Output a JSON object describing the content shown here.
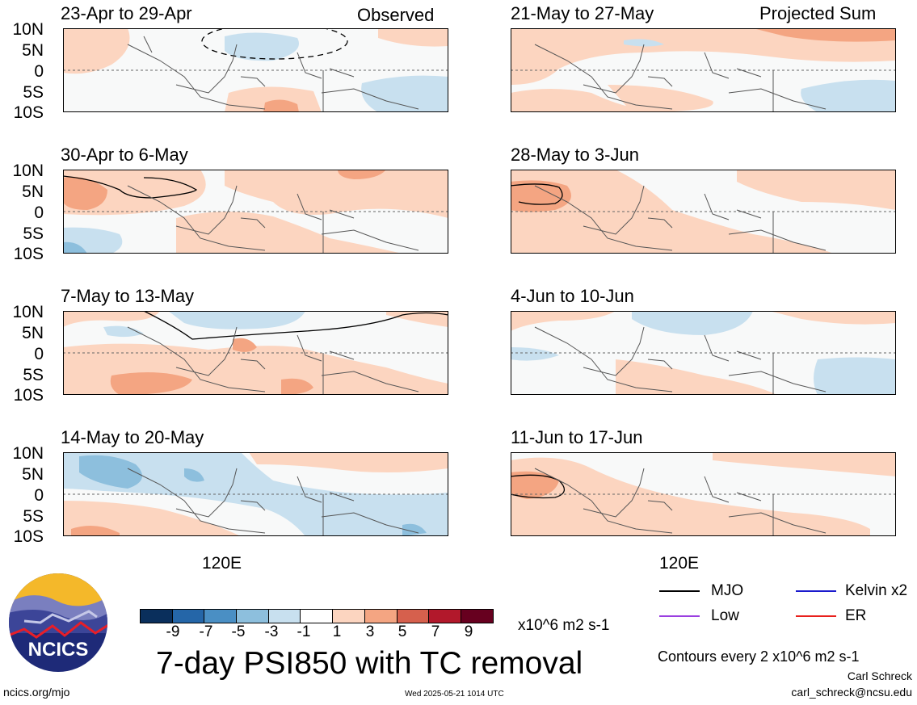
{
  "panels_left": [
    {
      "title": "23-Apr to 29-Apr",
      "corner": "Observed"
    },
    {
      "title": "30-Apr to 6-May",
      "corner": ""
    },
    {
      "title": "7-May to 13-May",
      "corner": ""
    },
    {
      "title": "14-May to 20-May",
      "corner": ""
    }
  ],
  "panels_right": [
    {
      "title": "21-May to 27-May",
      "corner": "Projected Sum"
    },
    {
      "title": "28-May to 3-Jun",
      "corner": ""
    },
    {
      "title": "4-Jun to 10-Jun",
      "corner": ""
    },
    {
      "title": "11-Jun to 17-Jun",
      "corner": ""
    }
  ],
  "lat_labels": [
    "10N",
    "5N",
    "0",
    "5S",
    "10S"
  ],
  "lon_label": "120E",
  "colorbar": {
    "colors": [
      "#0a2f5c",
      "#2566a8",
      "#4a8fc4",
      "#8dbfdd",
      "#c8e0ef",
      "#ffffff",
      "#fcd5c0",
      "#f4a582",
      "#d6604d",
      "#b2182b",
      "#67001f"
    ],
    "ticks": [
      "-9",
      "-7",
      "-5",
      "-3",
      "-1",
      "1",
      "3",
      "5",
      "7",
      "9"
    ],
    "units": "x10^6 m2 s-1"
  },
  "title": "7-day PSI850 with TC removal",
  "legend": [
    {
      "label": "MJO",
      "color": "#000000"
    },
    {
      "label": "Kelvin x2",
      "color": "#1a1acd"
    },
    {
      "label": "Low",
      "color": "#9a3fe0"
    },
    {
      "label": "ER",
      "color": "#e8201c"
    }
  ],
  "contours_note": "Contours every 2 x10^6 m2 s-1",
  "author": "Carl Schreck",
  "email": "carl_schreck@ncsu.edu",
  "website": "ncics.org/mjo",
  "timestamp": "Wed 2025-05-21 1014 UTC",
  "logo_text": "NCICS"
}
